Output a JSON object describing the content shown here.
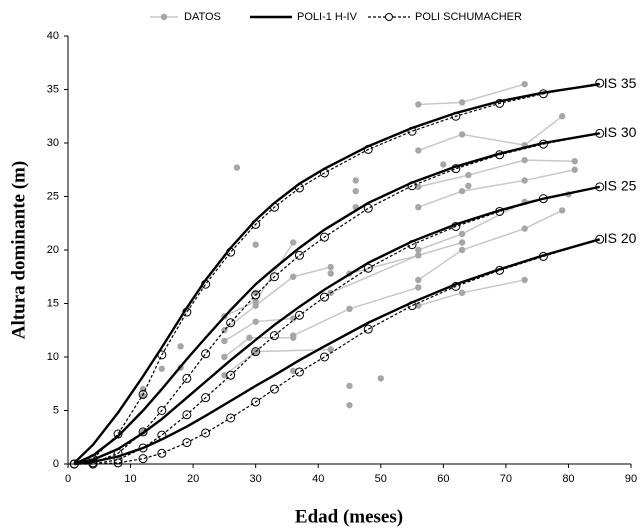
{
  "chart_data": {
    "type": "line",
    "x_label": "Edad (meses)",
    "y_label": "Altura dominante (m)",
    "xlim": [
      0,
      90
    ],
    "xticks": [
      0,
      10,
      20,
      30,
      40,
      50,
      60,
      70,
      80,
      90
    ],
    "ylim": [
      0,
      40
    ],
    "yticks": [
      0,
      5,
      10,
      15,
      20,
      25,
      30,
      35,
      40
    ],
    "x": [
      1,
      4,
      8,
      12,
      15,
      19,
      22,
      26,
      30,
      33,
      37,
      41,
      48,
      55,
      62,
      69,
      76,
      85
    ],
    "curve_labels": [
      "IS 35",
      "IS 30",
      "IS 25",
      "IS 20"
    ],
    "models": [
      {
        "name": "POLI-1 H-IV",
        "color": "#000000",
        "dashed": false,
        "markers": false,
        "curves": [
          [
            0.1,
            1.8,
            4.8,
            8.2,
            10.9,
            14.6,
            17.2,
            20.2,
            22.8,
            24.4,
            26.2,
            27.6,
            29.7,
            31.4,
            32.8,
            33.9,
            34.7,
            35.5
          ],
          [
            0,
            0.8,
            2.6,
            5.0,
            7.0,
            9.8,
            11.8,
            14.4,
            16.8,
            18.3,
            20.2,
            21.9,
            24.4,
            26.3,
            27.8,
            29.0,
            30.0,
            30.9
          ],
          [
            0,
            0.4,
            1.4,
            2.9,
            4.2,
            6.2,
            7.7,
            9.7,
            11.6,
            13.0,
            14.7,
            16.3,
            18.8,
            20.8,
            22.4,
            23.7,
            24.8,
            25.9
          ],
          [
            0,
            0.2,
            0.7,
            1.5,
            2.3,
            3.5,
            4.5,
            5.9,
            7.3,
            8.3,
            9.7,
            11.0,
            13.2,
            15.1,
            16.8,
            18.2,
            19.5,
            21.0
          ]
        ]
      },
      {
        "name": "POLI SCHUMACHER",
        "color": "#000000",
        "dashed": true,
        "markers": true,
        "curves": [
          [
            0,
            0.5,
            2.8,
            6.5,
            10.2,
            14.2,
            16.8,
            19.8,
            22.4,
            24.0,
            25.8,
            27.2,
            29.4,
            31.1,
            32.5,
            33.7,
            34.6,
            35.6
          ],
          [
            0,
            0.1,
            1.0,
            3.0,
            5.0,
            8.0,
            10.3,
            13.2,
            15.8,
            17.5,
            19.5,
            21.2,
            23.9,
            26.0,
            27.6,
            28.9,
            29.9,
            30.9
          ],
          [
            0,
            0,
            0.4,
            1.5,
            2.7,
            4.6,
            6.2,
            8.3,
            10.5,
            12.0,
            13.9,
            15.6,
            18.3,
            20.5,
            22.2,
            23.6,
            24.8,
            25.9
          ],
          [
            0,
            0,
            0.1,
            0.5,
            1.0,
            2.0,
            2.9,
            4.3,
            5.8,
            7.0,
            8.6,
            10.0,
            12.6,
            14.8,
            16.6,
            18.1,
            19.4,
            21.0
          ]
        ]
      }
    ],
    "datos": {
      "name": "DATOS",
      "color": "#a6a6a6",
      "trajectories": [
        {
          "x": [
            25,
            30,
            36
          ],
          "y": [
            13.8,
            15.2,
            20.7
          ]
        },
        {
          "x": [
            25,
            30,
            36,
            42
          ],
          "y": [
            12.5,
            14.8,
            17.5,
            18.4
          ]
        },
        {
          "x": [
            25,
            30,
            36
          ],
          "y": [
            11.5,
            13.3,
            13.6
          ]
        },
        {
          "x": [
            25,
            29,
            36
          ],
          "y": [
            10,
            11.8,
            11.8
          ]
        },
        {
          "x": [
            25,
            30,
            42
          ],
          "y": [
            8.3,
            10.5,
            10.7
          ]
        },
        {
          "x": [
            56,
            63,
            73
          ],
          "y": [
            33.6,
            33.8,
            35.5
          ]
        },
        {
          "x": [
            56,
            63,
            73,
            79
          ],
          "y": [
            29.3,
            30.8,
            29.8,
            32.5
          ]
        },
        {
          "x": [
            56,
            64,
            73,
            81
          ],
          "y": [
            25.9,
            27,
            28.4,
            28.3
          ]
        },
        {
          "x": [
            56,
            63,
            73,
            81
          ],
          "y": [
            24,
            25.5,
            26.5,
            27.5
          ]
        },
        {
          "x": [
            56,
            63,
            73,
            80
          ],
          "y": [
            20,
            21.5,
            24.5,
            25.2
          ]
        },
        {
          "x": [
            56,
            63,
            73,
            79
          ],
          "y": [
            17.2,
            20,
            22,
            23.7
          ]
        },
        {
          "x": [
            56,
            63,
            73
          ],
          "y": [
            14.8,
            16,
            17.2
          ]
        },
        {
          "x": [
            45,
            56,
            63
          ],
          "y": [
            17.8,
            19.5,
            20.7
          ]
        },
        {
          "x": [
            36,
            45,
            56
          ],
          "y": [
            12,
            14.5,
            16.5
          ]
        },
        {
          "x": [
            42,
            56
          ],
          "y": [
            16,
            19.5
          ]
        },
        {
          "x": [
            12
          ],
          "y": [
            7
          ]
        },
        {
          "x": [
            12
          ],
          "y": [
            6.4
          ]
        },
        {
          "x": [
            12
          ],
          "y": [
            3
          ]
        },
        {
          "x": [
            15
          ],
          "y": [
            8.9
          ]
        },
        {
          "x": [
            18
          ],
          "y": [
            11
          ]
        },
        {
          "x": [
            18
          ],
          "y": [
            9
          ]
        },
        {
          "x": [
            27
          ],
          "y": [
            27.7
          ]
        },
        {
          "x": [
            30
          ],
          "y": [
            20.5
          ]
        },
        {
          "x": [
            36
          ],
          "y": [
            8.7
          ]
        },
        {
          "x": [
            46
          ],
          "y": [
            24
          ]
        },
        {
          "x": [
            46
          ],
          "y": [
            26.5
          ]
        },
        {
          "x": [
            46
          ],
          "y": [
            25.5
          ]
        },
        {
          "x": [
            45
          ],
          "y": [
            7.3
          ]
        },
        {
          "x": [
            45
          ],
          "y": [
            5.5
          ]
        },
        {
          "x": [
            50
          ],
          "y": [
            8
          ]
        },
        {
          "x": [
            60
          ],
          "y": [
            28
          ]
        },
        {
          "x": [
            64
          ],
          "y": [
            26
          ]
        },
        {
          "x": [
            30
          ],
          "y": [
            16
          ]
        },
        {
          "x": [
            42
          ],
          "y": [
            17.8
          ]
        }
      ]
    }
  }
}
